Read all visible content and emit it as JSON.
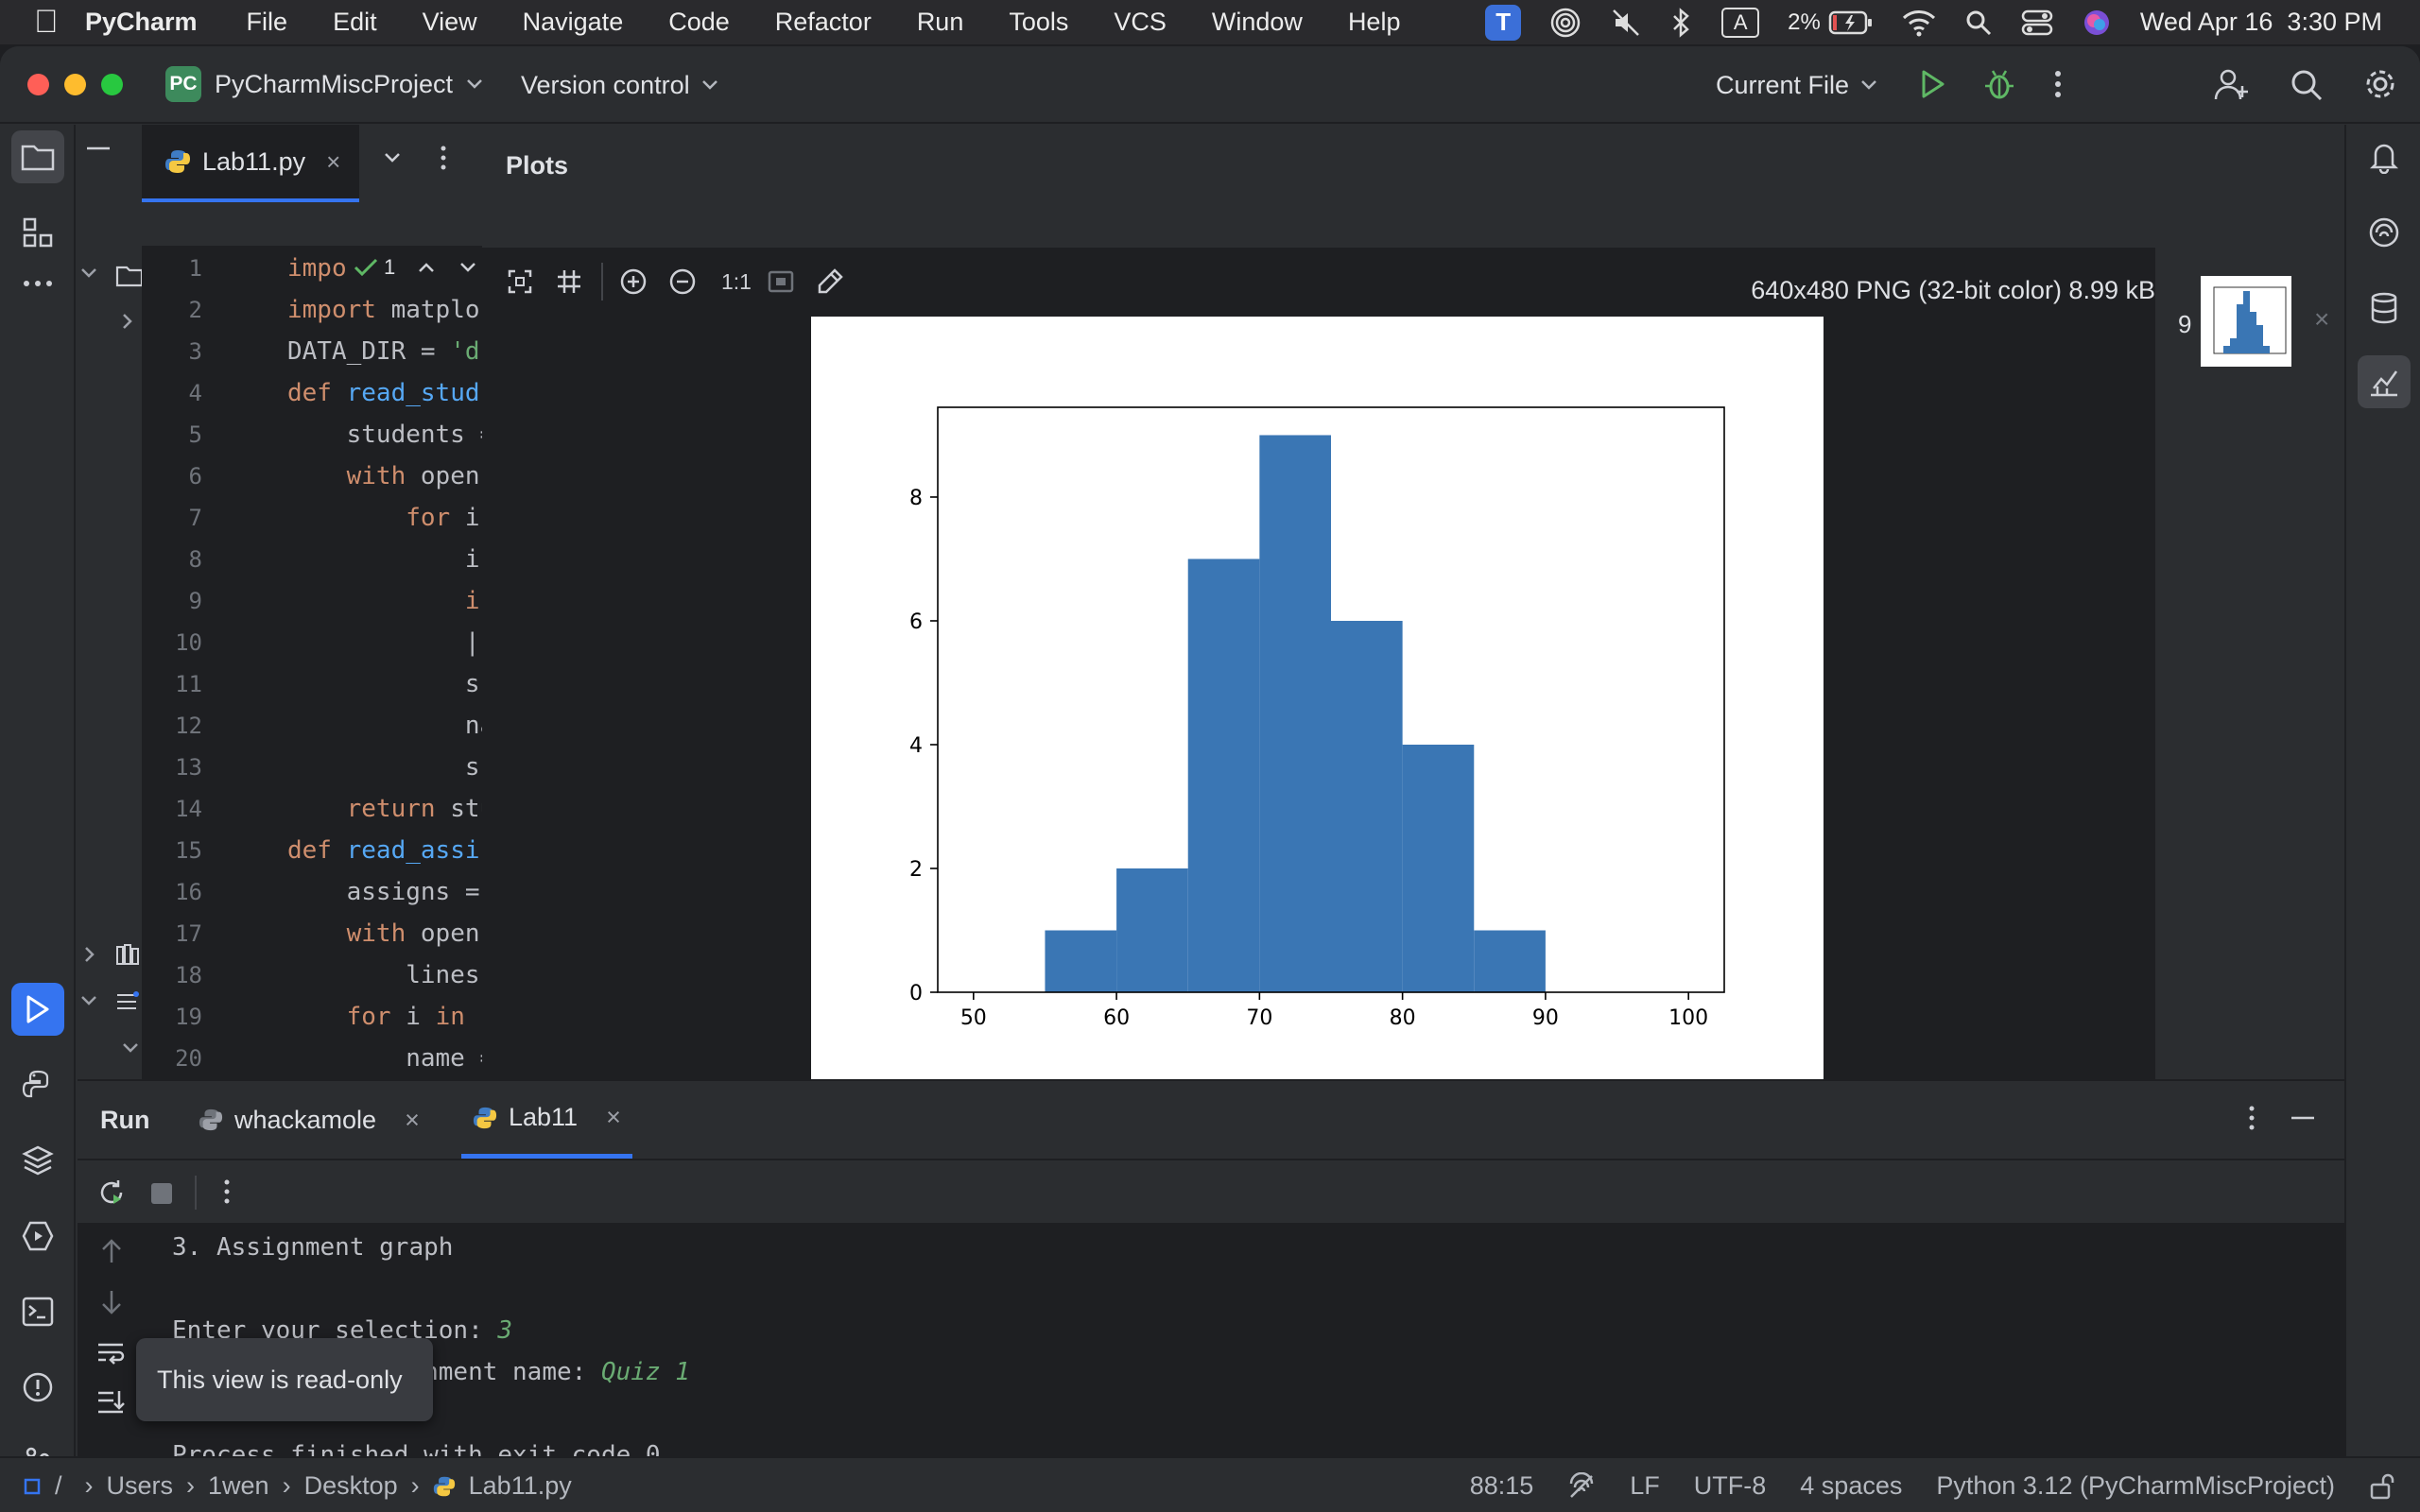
{
  "menubar": {
    "app_name": "PyCharm",
    "menus": [
      "File",
      "Edit",
      "View",
      "Navigate",
      "Code",
      "Refactor",
      "Run",
      "Tools",
      "VCS",
      "Window",
      "Help"
    ],
    "battery": "2%",
    "datetime": "Wed Apr 16  3:30 PM",
    "input_source": "A"
  },
  "toolbar": {
    "project_badge": "PC",
    "project_name": "PyCharmMiscProject",
    "version_control": "Version control",
    "run_config": "Current File"
  },
  "editor": {
    "tab_label": "Lab11.py",
    "inspection_count": "1",
    "line_numbers": [
      "1",
      "2",
      "3",
      "4",
      "5",
      "6",
      "7",
      "8",
      "9",
      "10",
      "11",
      "12",
      "13",
      "14",
      "15",
      "16",
      "17",
      "18",
      "19",
      "20"
    ],
    "code_lines": [
      "impo",
      "import matplo",
      "DATA_DIR = 'd",
      "def read_stud",
      "    students =",
      "    with open",
      "        for i",
      "            i",
      "            i",
      "            |",
      "            s",
      "            na",
      "            s",
      "    return stu",
      "def read_assi",
      "    assigns =",
      "    with open",
      "        lines",
      "    for i in ",
      "        name ="
    ]
  },
  "plots": {
    "title": "Plots",
    "zoom_label": "1:1",
    "image_info": "640x480 PNG (32-bit color) 8.99 kB",
    "thumbnail_count": "9"
  },
  "chart_data": {
    "type": "bar",
    "bin_edges": [
      55,
      60,
      65,
      70,
      75,
      80,
      85,
      90
    ],
    "values": [
      1,
      2,
      7,
      9,
      6,
      4,
      1
    ],
    "xticks": [
      "50",
      "60",
      "70",
      "80",
      "90",
      "100"
    ],
    "yticks": [
      "0",
      "2",
      "4",
      "6",
      "8"
    ],
    "xlim": [
      47.5,
      102.5
    ],
    "ylim": [
      0,
      9.45
    ],
    "color": "#3a76b4",
    "title": "",
    "xlabel": "",
    "ylabel": ""
  },
  "run": {
    "title": "Run",
    "tabs": [
      "whackamole",
      "Lab11"
    ],
    "console_lines": [
      {
        "text": "3. Assignment graph",
        "input": ""
      },
      {
        "text": "",
        "input": ""
      },
      {
        "text": "Enter your selection: ",
        "input": "3"
      },
      {
        "text": "What is the assignment name: ",
        "input": "Quiz 1"
      },
      {
        "text": "",
        "input": ""
      },
      {
        "text": "Process finished with exit code 0",
        "input": ""
      }
    ],
    "tooltip": "This view is read-only"
  },
  "statusbar": {
    "breadcrumbs": [
      "Users",
      "1wen",
      "Desktop",
      "Lab11.py"
    ],
    "position": "88:15",
    "line_ending": "LF",
    "encoding": "UTF-8",
    "indent": "4 spaces",
    "interpreter": "Python 3.12 (PyCharmMiscProject)"
  }
}
